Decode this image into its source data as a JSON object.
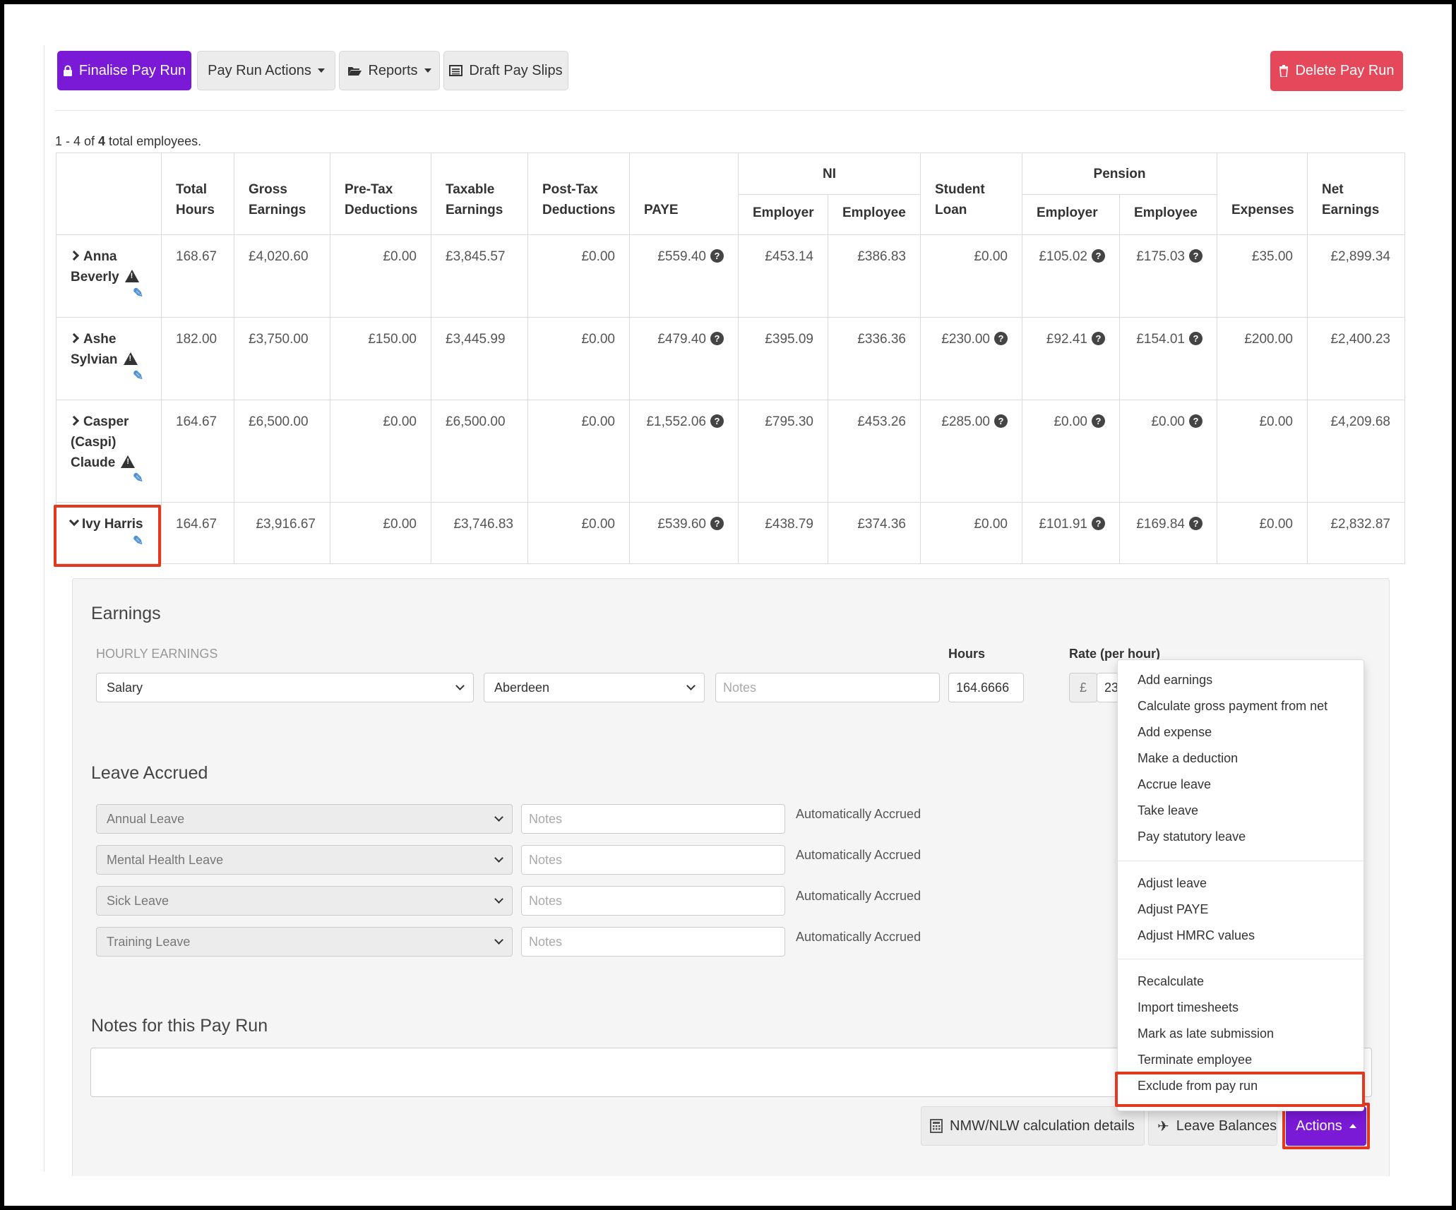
{
  "toolbar": {
    "finalise": "Finalise Pay Run",
    "pay_run_actions": "Pay Run Actions",
    "reports": "Reports",
    "draft_pay_slips": "Draft Pay Slips",
    "delete": "Delete Pay Run"
  },
  "summary": {
    "prefix": "1 - 4 of ",
    "total": "4",
    "suffix": " total employees."
  },
  "table": {
    "headers": {
      "total_hours": "Total Hours",
      "gross": "Gross Earnings",
      "pretax": "Pre-Tax Deductions",
      "taxable": "Taxable Earnings",
      "posttax": "Post-Tax Deductions",
      "paye": "PAYE",
      "ni": "NI",
      "ni_employer": "Employer",
      "ni_employee": "Employee",
      "student_loan": "Student Loan",
      "pension": "Pension",
      "pension_employer": "Employer",
      "pension_employee": "Employee",
      "expenses": "Expenses",
      "net": "Net Earnings"
    },
    "rows": [
      {
        "name": "Anna Beverly",
        "hours": "168.67",
        "gross": "£4,020.60",
        "pretax": "£0.00",
        "taxable": "£3,845.57",
        "posttax": "£0.00",
        "paye": "£559.40",
        "ni_er": "£453.14",
        "ni_ee": "£386.83",
        "loan": "£0.00",
        "pen_er": "£105.02",
        "pen_ee": "£175.03",
        "expenses": "£35.00",
        "net": "£2,899.34"
      },
      {
        "name": "Ashe Sylvian",
        "hours": "182.00",
        "gross": "£3,750.00",
        "pretax": "£150.00",
        "taxable": "£3,445.99",
        "posttax": "£0.00",
        "paye": "£479.40",
        "ni_er": "£395.09",
        "ni_ee": "£336.36",
        "loan": "£230.00",
        "pen_er": "£92.41",
        "pen_ee": "£154.01",
        "expenses": "£200.00",
        "net": "£2,400.23"
      },
      {
        "name": "Casper (Caspi) Claude",
        "hours": "164.67",
        "gross": "£6,500.00",
        "pretax": "£0.00",
        "taxable": "£6,500.00",
        "posttax": "£0.00",
        "paye": "£1,552.06",
        "ni_er": "£795.30",
        "ni_ee": "£453.26",
        "loan": "£285.00",
        "pen_er": "£0.00",
        "pen_ee": "£0.00",
        "expenses": "£0.00",
        "net": "£4,209.68"
      },
      {
        "name": "Ivy Harris",
        "hours": "164.67",
        "gross": "£3,916.67",
        "pretax": "£0.00",
        "taxable": "£3,746.83",
        "posttax": "£0.00",
        "paye": "£539.60",
        "ni_er": "£438.79",
        "ni_ee": "£374.36",
        "loan": "£0.00",
        "pen_er": "£101.91",
        "pen_ee": "£169.84",
        "expenses": "£0.00",
        "net": "£2,832.87"
      }
    ]
  },
  "earnings": {
    "title": "Earnings",
    "section_label": "HOURLY EARNINGS",
    "hours_label": "Hours",
    "rate_label": "Rate (per hour)",
    "type_value": "Salary",
    "location_value": "Aberdeen",
    "notes_placeholder": "Notes",
    "hours_value": "164.6666",
    "currency": "£",
    "rate_value": "23"
  },
  "leave": {
    "title": "Leave Accrued",
    "items": [
      {
        "type": "Annual Leave",
        "notes": "Notes",
        "status": "Automatically Accrued"
      },
      {
        "type": "Mental Health Leave",
        "notes": "Notes",
        "status": "Automatically Accrued"
      },
      {
        "type": "Sick Leave",
        "notes": "Notes",
        "status": "Automatically Accrued"
      },
      {
        "type": "Training Leave",
        "notes": "Notes",
        "status": "Automatically Accrued"
      }
    ]
  },
  "notes": {
    "title": "Notes for this Pay Run"
  },
  "footer": {
    "nmw": "NMW/NLW calculation details",
    "leave_balances": "Leave Balances",
    "actions": "Actions"
  },
  "actions_menu": {
    "group1": [
      "Add earnings",
      "Calculate gross payment from net",
      "Add expense",
      "Make a deduction",
      "Accrue leave",
      "Take leave",
      "Pay statutory leave"
    ],
    "group2": [
      "Adjust leave",
      "Adjust PAYE",
      "Adjust HMRC values"
    ],
    "group3": [
      "Recalculate",
      "Import timesheets",
      "Mark as late submission",
      "Terminate employee",
      "Exclude from pay run"
    ]
  },
  "colors": {
    "accent": "#7a19d6",
    "danger": "#e5485a",
    "highlight": "#e0391f"
  }
}
